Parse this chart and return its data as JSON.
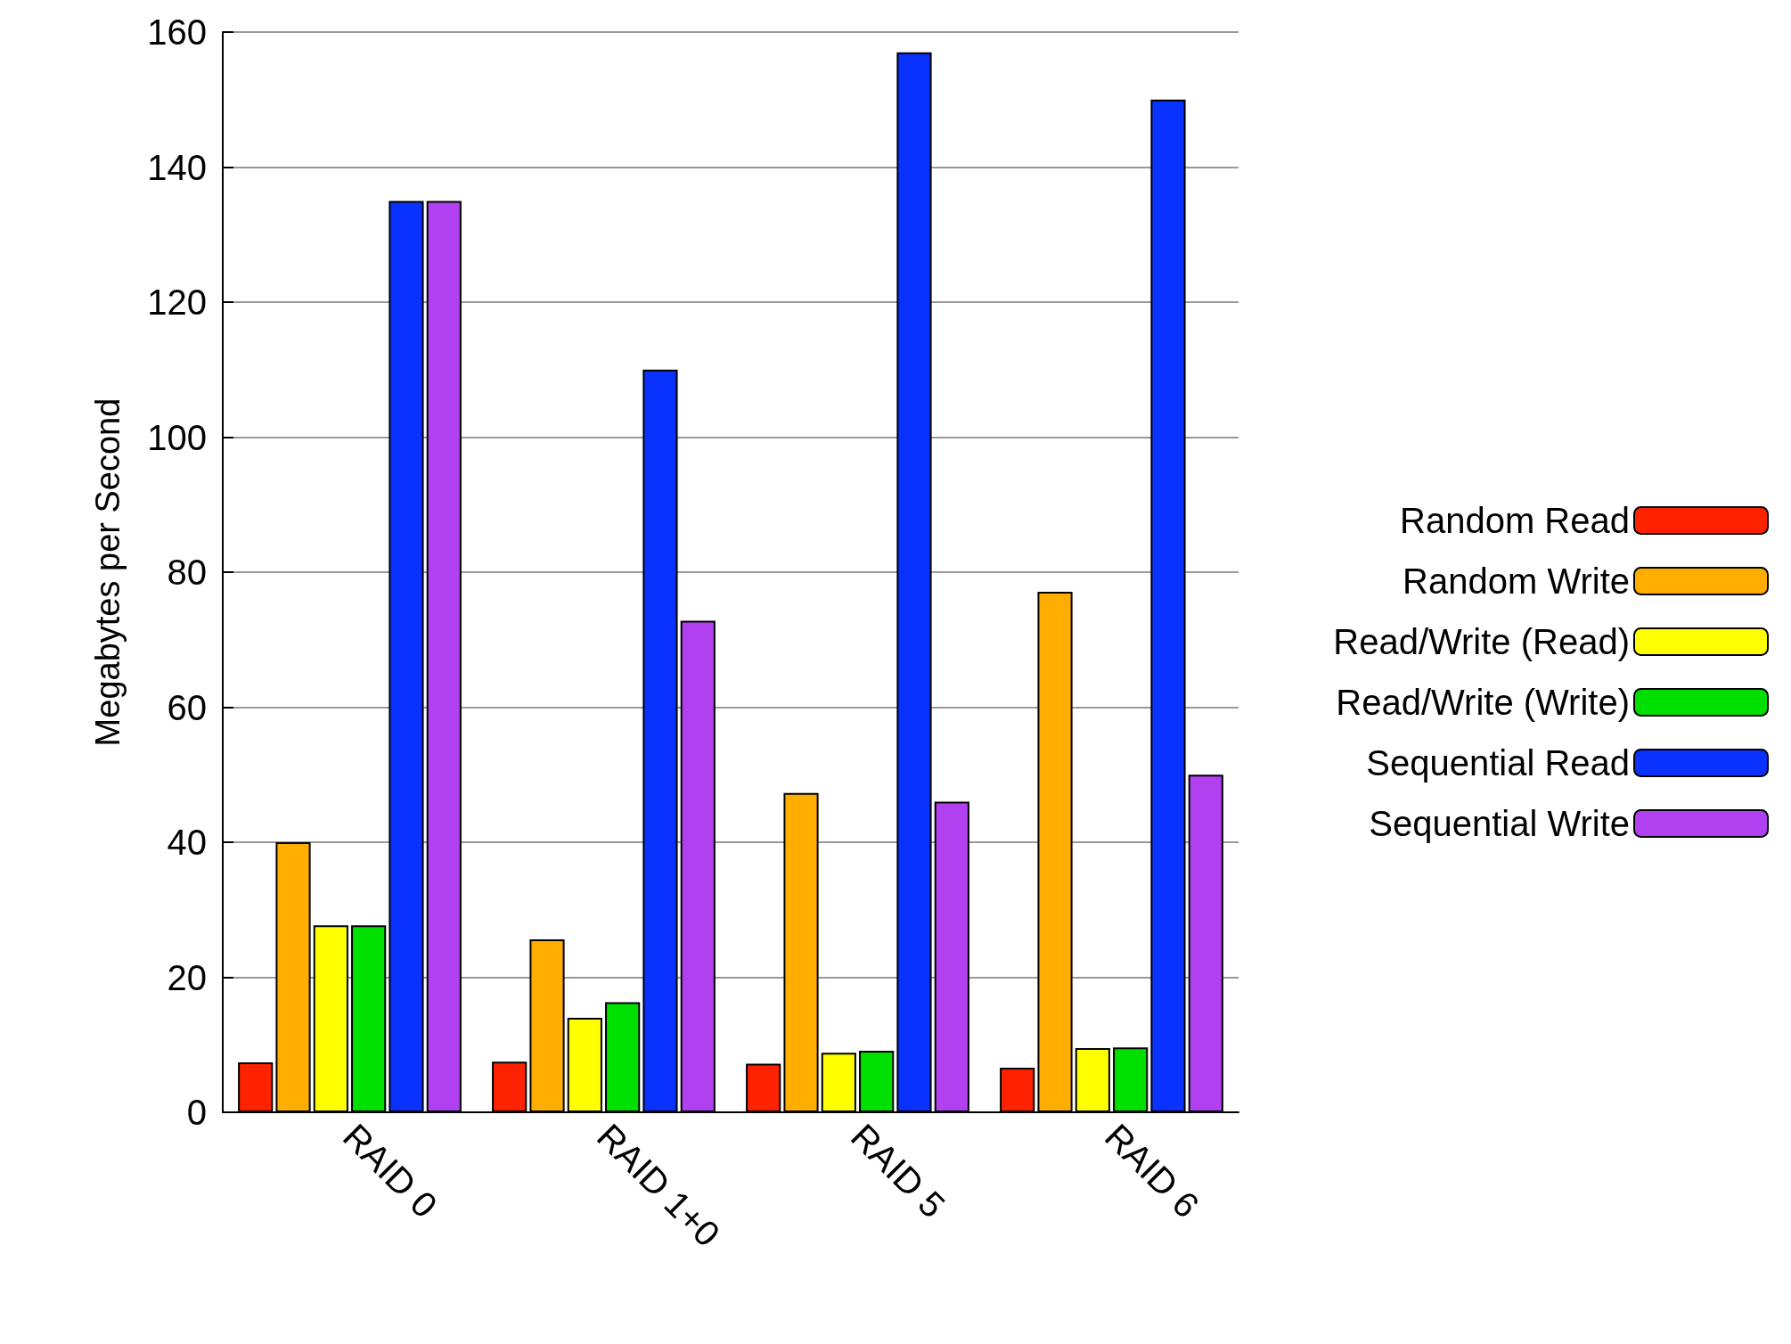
{
  "chart_data": {
    "type": "bar",
    "ylabel": "Megabytes per Second",
    "categories": [
      "RAID 0",
      "RAID 1+0",
      "RAID 5",
      "RAID 6"
    ],
    "ylim": [
      0,
      160
    ],
    "yticks": [
      0,
      20,
      40,
      60,
      80,
      100,
      120,
      140,
      160
    ],
    "grid": "y",
    "legend": "right",
    "series": [
      {
        "name": "Random Read",
        "color": "#ff2200",
        "values": [
          7.4,
          7.5,
          7.2,
          6.6
        ]
      },
      {
        "name": "Random Write",
        "color": "#ffae00",
        "values": [
          40,
          25.6,
          47.3,
          77.1
        ]
      },
      {
        "name": "Read/Write (Read)",
        "color": "#ffff00",
        "values": [
          27.7,
          14,
          8.8,
          9.5
        ]
      },
      {
        "name": "Read/Write (Write)",
        "color": "#00e000",
        "values": [
          27.7,
          16.3,
          9.1,
          9.6
        ]
      },
      {
        "name": "Sequential Read",
        "color": "#0a32ff",
        "values": [
          135,
          110,
          157,
          150
        ]
      },
      {
        "name": "Sequential Write",
        "color": "#b040f0",
        "values": [
          135,
          72.8,
          46,
          50
        ]
      }
    ]
  }
}
